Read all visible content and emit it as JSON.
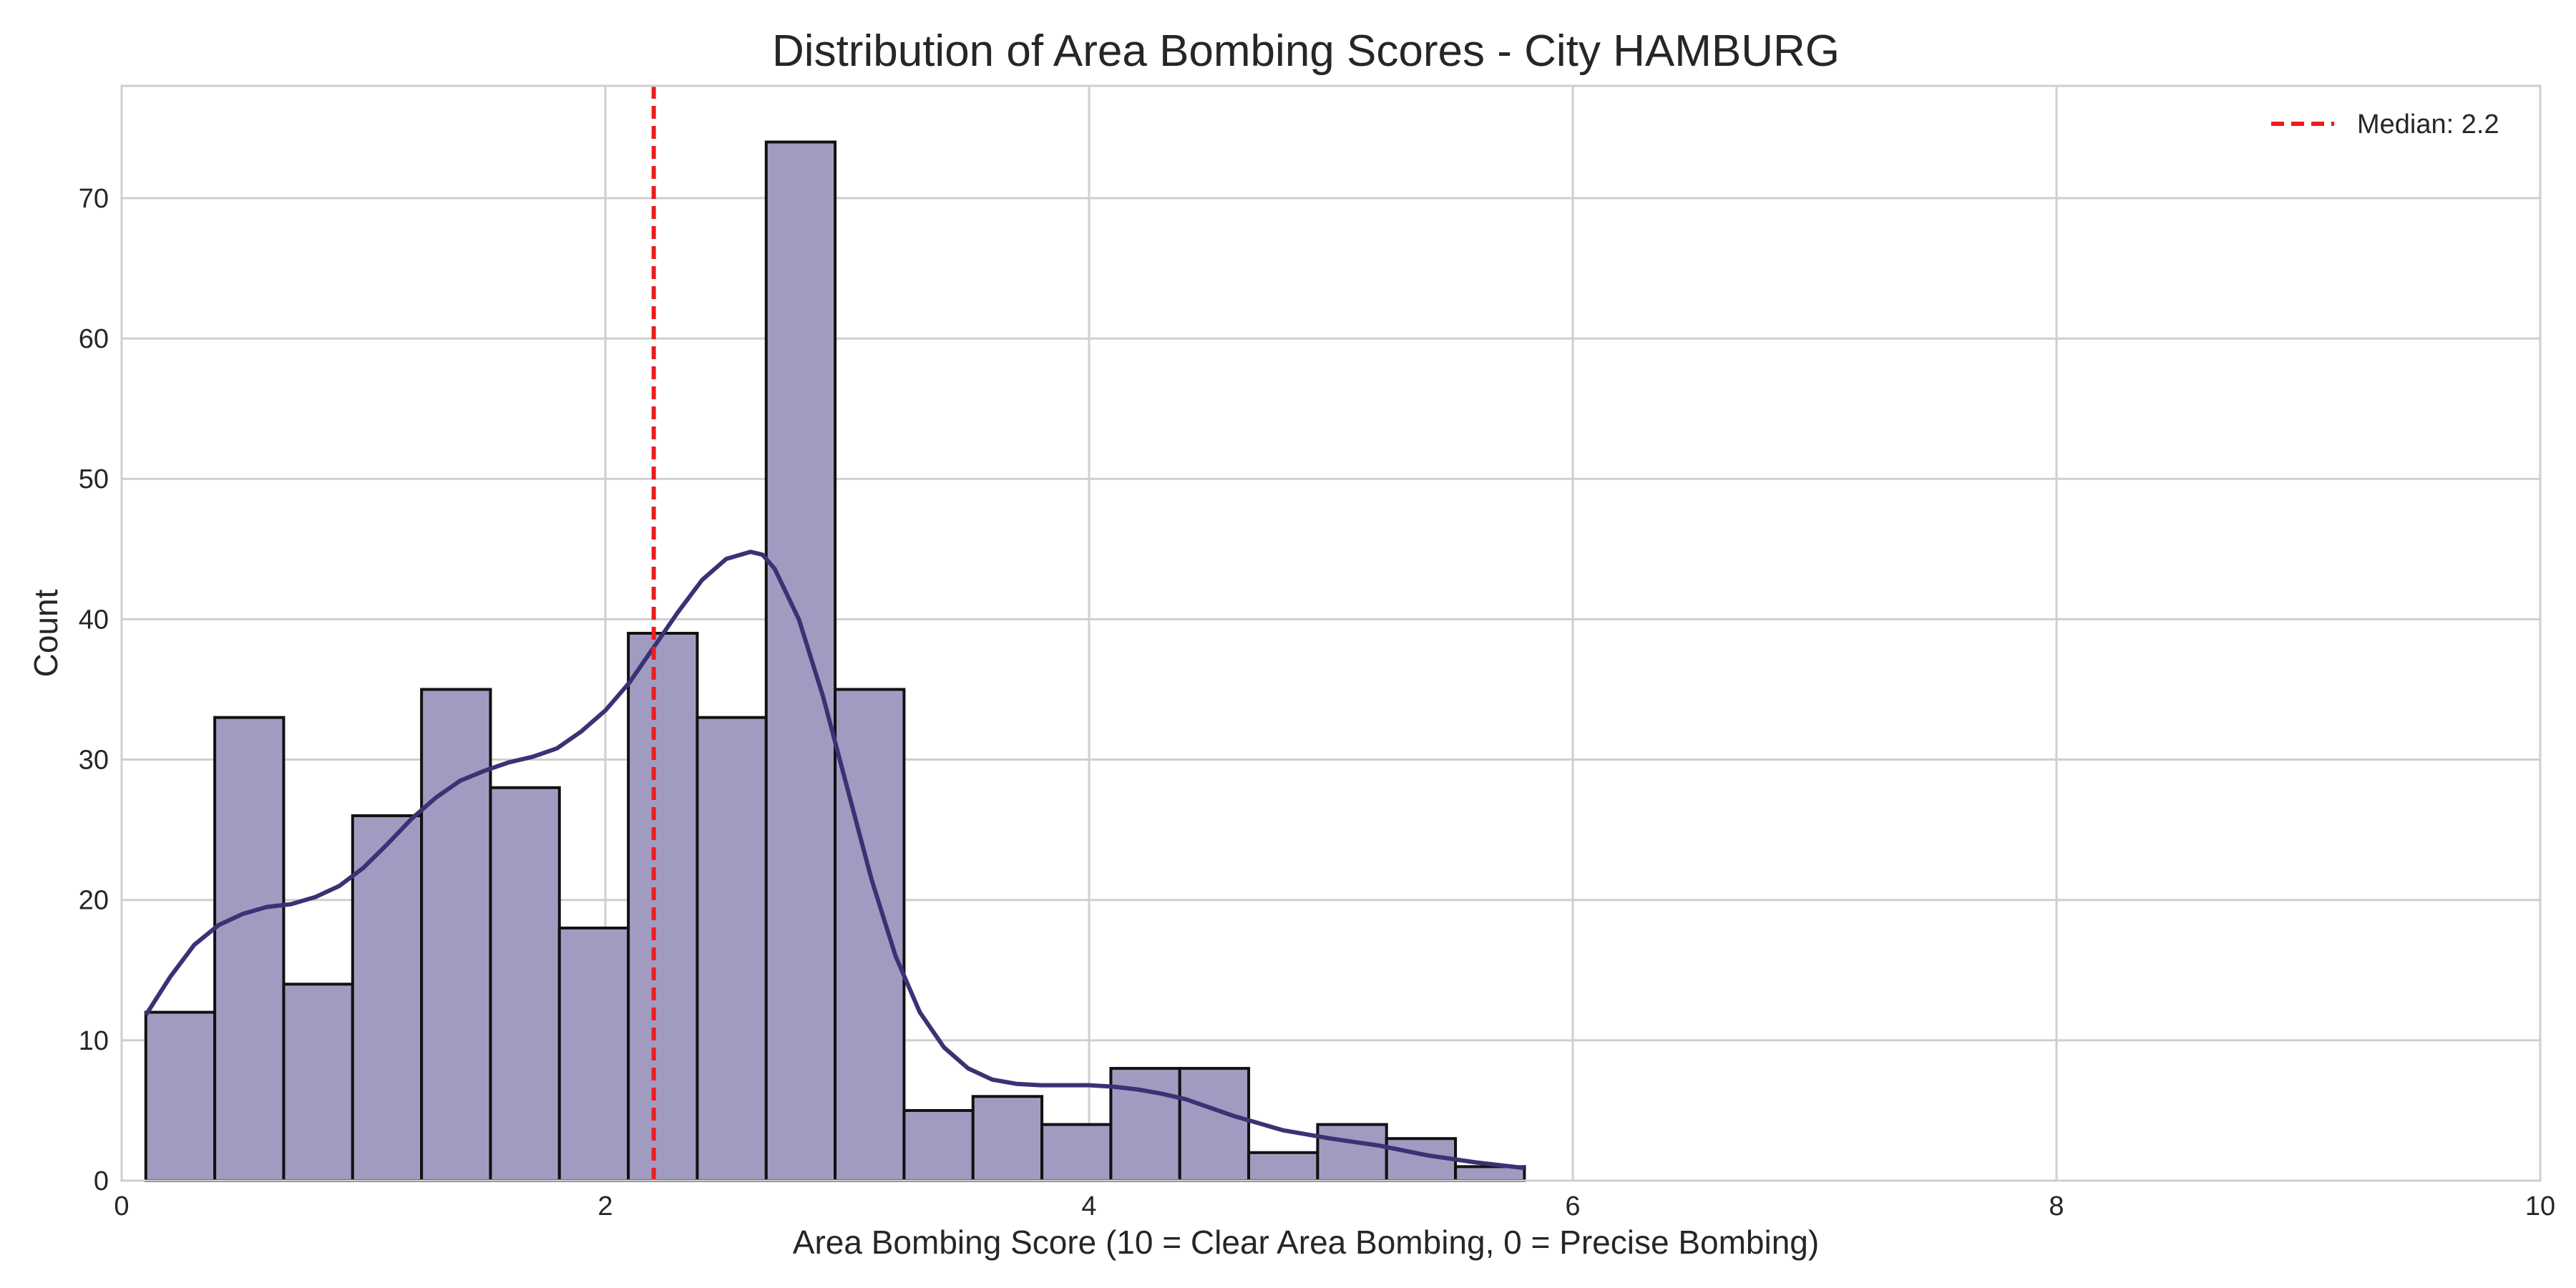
{
  "chart_data": {
    "type": "bar",
    "title": "Distribution of Area Bombing Scores - City HAMBURG",
    "xlabel": "Area Bombing Score (10 = Clear Area Bombing, 0 = Precise Bombing)",
    "ylabel": "Count",
    "xlim": [
      0,
      10
    ],
    "ylim": [
      0,
      78
    ],
    "xticks": [
      0,
      2,
      4,
      6,
      8,
      10
    ],
    "yticks": [
      0,
      10,
      20,
      30,
      40,
      50,
      60,
      70
    ],
    "grid": true,
    "bins": [
      {
        "x0": 0.1,
        "x1": 0.385,
        "count": 12
      },
      {
        "x0": 0.385,
        "x1": 0.67,
        "count": 33
      },
      {
        "x0": 0.67,
        "x1": 0.955,
        "count": 14
      },
      {
        "x0": 0.955,
        "x1": 1.24,
        "count": 26
      },
      {
        "x0": 1.24,
        "x1": 1.525,
        "count": 35
      },
      {
        "x0": 1.525,
        "x1": 1.81,
        "count": 28
      },
      {
        "x0": 1.81,
        "x1": 2.095,
        "count": 18
      },
      {
        "x0": 2.095,
        "x1": 2.38,
        "count": 39
      },
      {
        "x0": 2.38,
        "x1": 2.665,
        "count": 33
      },
      {
        "x0": 2.665,
        "x1": 2.95,
        "count": 74
      },
      {
        "x0": 2.95,
        "x1": 3.235,
        "count": 35
      },
      {
        "x0": 3.235,
        "x1": 3.52,
        "count": 5
      },
      {
        "x0": 3.52,
        "x1": 3.805,
        "count": 6
      },
      {
        "x0": 3.805,
        "x1": 4.09,
        "count": 4
      },
      {
        "x0": 4.09,
        "x1": 4.375,
        "count": 8
      },
      {
        "x0": 4.375,
        "x1": 4.66,
        "count": 8
      },
      {
        "x0": 4.66,
        "x1": 4.945,
        "count": 2
      },
      {
        "x0": 4.945,
        "x1": 5.23,
        "count": 4
      },
      {
        "x0": 5.23,
        "x1": 5.515,
        "count": 3
      },
      {
        "x0": 5.515,
        "x1": 5.8,
        "count": 1
      }
    ],
    "kde": {
      "x": [
        0.1,
        0.2,
        0.3,
        0.4,
        0.5,
        0.6,
        0.7,
        0.8,
        0.9,
        1.0,
        1.1,
        1.2,
        1.3,
        1.4,
        1.5,
        1.6,
        1.7,
        1.8,
        1.9,
        2.0,
        2.1,
        2.2,
        2.3,
        2.4,
        2.5,
        2.6,
        2.65,
        2.7,
        2.8,
        2.9,
        3.0,
        3.1,
        3.2,
        3.3,
        3.4,
        3.5,
        3.6,
        3.7,
        3.8,
        3.9,
        4.0,
        4.1,
        4.2,
        4.3,
        4.4,
        4.5,
        4.6,
        4.8,
        5.0,
        5.2,
        5.4,
        5.6,
        5.8
      ],
      "y": [
        11.8,
        14.5,
        16.8,
        18.2,
        19.0,
        19.5,
        19.7,
        20.2,
        21.0,
        22.3,
        24.0,
        25.8,
        27.3,
        28.5,
        29.2,
        29.8,
        30.2,
        30.8,
        32.0,
        33.5,
        35.5,
        38.0,
        40.5,
        42.8,
        44.3,
        44.8,
        44.6,
        43.6,
        40.0,
        34.5,
        28.0,
        21.5,
        16.0,
        12.0,
        9.5,
        8.0,
        7.2,
        6.9,
        6.8,
        6.8,
        6.8,
        6.7,
        6.5,
        6.2,
        5.8,
        5.2,
        4.6,
        3.6,
        3.0,
        2.5,
        1.8,
        1.3,
        0.9
      ]
    },
    "median": {
      "value": 2.2,
      "label": "Median: 2.2"
    },
    "colors": {
      "bar_fill": "#a29bc1",
      "bar_edge": "#111111",
      "kde_line": "#3d3175",
      "median_line": "#ee1c1c",
      "grid": "#cfcfcf",
      "frame": "#cfcfcf"
    },
    "legend_position": "top-right"
  }
}
